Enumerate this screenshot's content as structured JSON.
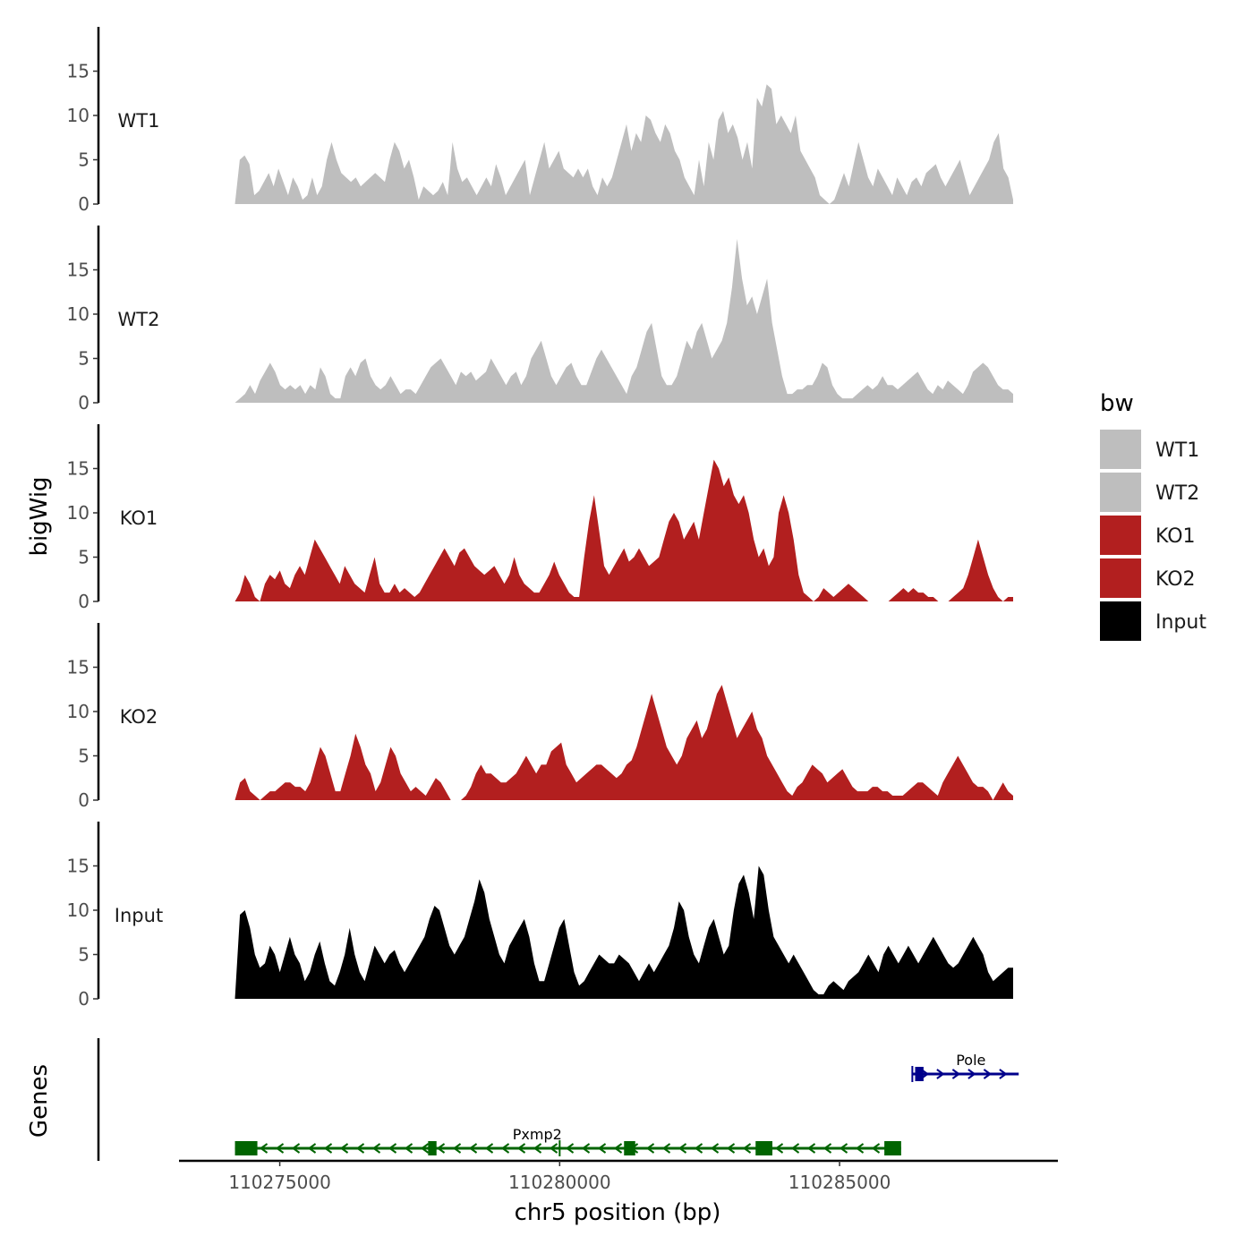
{
  "chart_data": {
    "type": "area",
    "region": {
      "chrom": "chr5",
      "start": 110274200,
      "end": 110288100
    },
    "xlim": [
      110273200,
      110288900
    ],
    "ylim": [
      0,
      20
    ],
    "yticks": [
      0,
      5,
      10,
      15
    ],
    "xticks": [
      110275000,
      110280000,
      110285000
    ],
    "xtick_labels": [
      "110275000",
      "110280000",
      "110285000"
    ],
    "xlabel": "chr5 position (bp)",
    "ylabel_tracks": "bigWig",
    "ylabel_genes": "Genes",
    "legend": {
      "title": "bw",
      "entries": [
        {
          "label": "WT1",
          "color": "#bebebe"
        },
        {
          "label": "WT2",
          "color": "#bebebe"
        },
        {
          "label": "KO1",
          "color": "#b21f1f"
        },
        {
          "label": "KO2",
          "color": "#b21f1f"
        },
        {
          "label": "Input",
          "color": "#000000"
        }
      ]
    },
    "series": [
      {
        "name": "WT1",
        "color": "#bebebe",
        "values": [
          0,
          5,
          5.5,
          4.5,
          1,
          1.5,
          2.5,
          3.5,
          2,
          4,
          2.5,
          1,
          3,
          2,
          0.5,
          1,
          3,
          1,
          2,
          5,
          7,
          5,
          3.5,
          3,
          2.5,
          3,
          2,
          2.5,
          3,
          3.5,
          3,
          2.5,
          5,
          7,
          6,
          4,
          5,
          3,
          0.5,
          2,
          1.5,
          1,
          1.5,
          2.5,
          1,
          7,
          4,
          2.5,
          3,
          2,
          1,
          2,
          3,
          2,
          4.5,
          3,
          1,
          2,
          3,
          4,
          5,
          1,
          3,
          5,
          7,
          4,
          5,
          6,
          4,
          3.5,
          3,
          4,
          3,
          4,
          2,
          1,
          3,
          2,
          3,
          5,
          7,
          9,
          6,
          8,
          7,
          10,
          9.5,
          8,
          7,
          9,
          8,
          6,
          5,
          3,
          2,
          1,
          5,
          2,
          7,
          5,
          9.5,
          10.5,
          8,
          9,
          7.5,
          5,
          7,
          4,
          12,
          11,
          13.5,
          13,
          9,
          10,
          9,
          8,
          10,
          6,
          5,
          4,
          3,
          1,
          0.5,
          0,
          0.5,
          2,
          3.5,
          2,
          4.5,
          7,
          5,
          3,
          2,
          4,
          3,
          2,
          1,
          3,
          2,
          1,
          2.5,
          3,
          2,
          3.5,
          4,
          4.5,
          3,
          2,
          3,
          4,
          5,
          3,
          1,
          2,
          3,
          4,
          5,
          7,
          8,
          4,
          3,
          0.5
        ]
      },
      {
        "name": "WT2",
        "color": "#bebebe",
        "values": [
          0,
          0.5,
          1,
          2,
          1,
          2.5,
          3.5,
          4.5,
          3.5,
          2,
          1.5,
          2,
          1.5,
          2,
          1,
          2,
          1.5,
          4,
          3,
          1,
          0.5,
          0.5,
          3,
          4,
          3,
          4.5,
          5,
          3,
          2,
          1.5,
          2,
          3,
          2,
          1,
          1.5,
          1.5,
          1,
          2,
          3,
          4,
          4.5,
          5,
          4,
          3,
          2,
          3.5,
          3,
          3.5,
          2.5,
          3,
          3.5,
          5,
          4,
          3,
          2,
          3,
          3.5,
          2,
          3,
          5,
          6,
          7,
          5,
          3,
          2,
          3,
          4,
          4.5,
          3,
          2,
          2,
          3.5,
          5,
          6,
          5,
          4,
          3,
          2,
          1,
          3,
          4,
          6,
          8,
          9,
          6,
          3,
          2,
          2,
          3,
          5,
          7,
          6,
          8,
          9,
          7,
          5,
          6,
          7,
          9,
          13,
          18.5,
          14,
          11,
          12,
          10,
          12,
          14,
          9,
          6,
          3,
          1,
          1,
          1.5,
          1.5,
          2,
          2,
          3,
          4.5,
          4,
          2,
          1,
          0.5,
          0.5,
          0.5,
          1,
          1.5,
          2,
          1.5,
          2,
          3,
          2,
          2,
          1.5,
          2,
          2.5,
          3,
          3.5,
          2.5,
          1.5,
          1,
          2,
          1.5,
          2.5,
          2,
          1.5,
          1,
          2,
          3.5,
          4,
          4.5,
          4,
          3,
          2,
          1.5,
          1.5,
          1
        ]
      },
      {
        "name": "KO1",
        "color": "#b21f1f",
        "values": [
          0,
          1,
          3,
          2,
          0.5,
          0,
          2,
          3,
          2.5,
          3.5,
          2,
          1.5,
          3,
          4,
          3,
          5,
          7,
          6,
          5,
          4,
          3,
          2,
          4,
          3,
          2,
          1.5,
          1,
          3,
          5,
          2,
          1,
          1,
          2,
          1,
          1.5,
          1,
          0.5,
          1,
          2,
          3,
          4,
          5,
          6,
          5,
          4,
          5.5,
          6,
          5,
          4,
          3.5,
          3,
          3.5,
          4,
          3,
          2,
          3,
          5,
          3,
          2,
          1.5,
          1,
          1,
          2,
          3,
          4.5,
          3,
          2,
          1,
          0.5,
          0.5,
          5,
          9,
          12,
          8,
          4,
          3,
          4,
          5,
          6,
          4.5,
          5,
          6,
          5,
          4,
          4.5,
          5,
          7,
          9,
          10,
          9,
          7,
          8,
          9,
          7,
          10,
          13,
          16,
          15,
          13,
          14,
          12,
          11,
          12,
          10,
          7,
          5,
          6,
          4,
          5,
          10,
          12,
          10,
          7,
          3,
          1,
          0.5,
          0,
          0.5,
          1.5,
          1,
          0.5,
          1,
          1.5,
          2,
          1.5,
          1,
          0.5,
          0,
          0,
          0,
          0,
          0,
          0.5,
          1,
          1.5,
          1,
          1.5,
          1,
          1,
          0.5,
          0.5,
          0,
          0,
          0,
          0.5,
          1,
          1.5,
          3,
          5,
          7,
          5,
          3,
          1.5,
          0.5,
          0,
          0.5,
          0.5
        ]
      },
      {
        "name": "KO2",
        "color": "#b21f1f",
        "values": [
          0,
          2,
          2.5,
          1,
          0.5,
          0,
          0.5,
          1,
          1,
          1.5,
          2,
          2,
          1.5,
          1.5,
          1,
          2,
          4,
          6,
          5,
          3,
          1,
          1,
          3,
          5,
          7.5,
          6,
          4,
          3,
          1,
          2,
          4,
          6,
          5,
          3,
          2,
          1,
          1.5,
          1,
          0.5,
          1.5,
          2.5,
          2,
          1,
          0,
          0,
          0,
          0.5,
          1.5,
          3,
          4,
          3,
          3,
          2.5,
          2,
          2,
          2.5,
          3,
          4,
          5,
          4,
          3,
          4,
          4,
          5.5,
          6,
          6.5,
          4,
          3,
          2,
          2.5,
          3,
          3.5,
          4,
          4,
          3.5,
          3,
          2.5,
          3,
          4,
          4.5,
          6,
          8,
          10,
          12,
          10,
          8,
          6,
          5,
          4,
          5,
          7,
          8,
          9,
          7,
          8,
          10,
          12,
          13,
          11,
          9,
          7,
          8,
          9,
          10,
          8,
          7,
          5,
          4,
          3,
          2,
          1,
          0.5,
          1.5,
          2,
          3,
          4,
          3.5,
          3,
          2,
          2.5,
          3,
          3.5,
          2.5,
          1.5,
          1,
          1,
          1,
          1.5,
          1.5,
          1,
          1,
          0.5,
          0.5,
          0.5,
          1,
          1.5,
          2,
          2,
          1.5,
          1,
          0.5,
          2,
          3,
          4,
          5,
          4,
          3,
          2,
          1.5,
          1.5,
          1,
          0,
          1,
          2,
          1,
          0.5
        ]
      },
      {
        "name": "Input",
        "color": "#000000",
        "values": [
          0,
          9.5,
          10,
          8,
          5,
          3.5,
          4,
          6,
          5,
          3,
          5,
          7,
          5,
          4,
          2,
          3,
          5,
          6.5,
          4,
          2,
          1.5,
          3,
          5,
          8,
          5,
          3,
          2,
          4,
          6,
          5,
          4,
          5,
          5.5,
          4,
          3,
          4,
          5,
          6,
          7,
          9,
          10.5,
          10,
          8,
          6,
          5,
          6,
          7,
          9,
          11,
          13.5,
          12,
          9,
          7,
          5,
          4,
          6,
          7,
          8,
          9,
          7,
          4,
          2,
          2,
          4,
          6,
          8,
          9,
          6,
          3,
          1.5,
          2,
          3,
          4,
          5,
          4.5,
          4,
          4,
          5,
          4.5,
          4,
          3,
          2,
          3,
          4,
          3,
          4,
          5,
          6,
          8,
          11,
          10,
          7,
          5,
          4,
          6,
          8,
          9,
          7,
          5,
          6,
          10,
          13,
          14,
          12,
          9,
          15,
          14,
          10,
          7,
          6,
          5,
          4,
          5,
          4,
          3,
          2,
          1,
          0.5,
          0.5,
          1.5,
          2,
          1.5,
          1,
          2,
          2.5,
          3,
          4,
          5,
          4,
          3,
          5,
          6,
          5,
          4,
          5,
          6,
          5,
          4,
          5,
          6,
          7,
          6,
          5,
          4,
          3.5,
          4,
          5,
          6,
          7,
          6,
          5,
          3,
          2,
          2.5,
          3,
          3.5,
          3.5
        ]
      }
    ],
    "genes": [
      {
        "name": "Pxmp2",
        "strand": "-",
        "color": "#006400",
        "start": 110274200,
        "end": 110286100,
        "exons": [
          [
            110274200,
            110274600
          ],
          [
            110277650,
            110277800
          ],
          [
            110281150,
            110281350
          ],
          [
            110283500,
            110283800
          ],
          [
            110285800,
            110286100
          ]
        ],
        "tss_mark": 110280000
      },
      {
        "name": "Pole",
        "strand": "+",
        "color": "#00008b",
        "start": 110286300,
        "end": 110288200,
        "exons": [
          [
            110286350,
            110286500
          ]
        ],
        "tss_mark": 110286300
      }
    ]
  }
}
